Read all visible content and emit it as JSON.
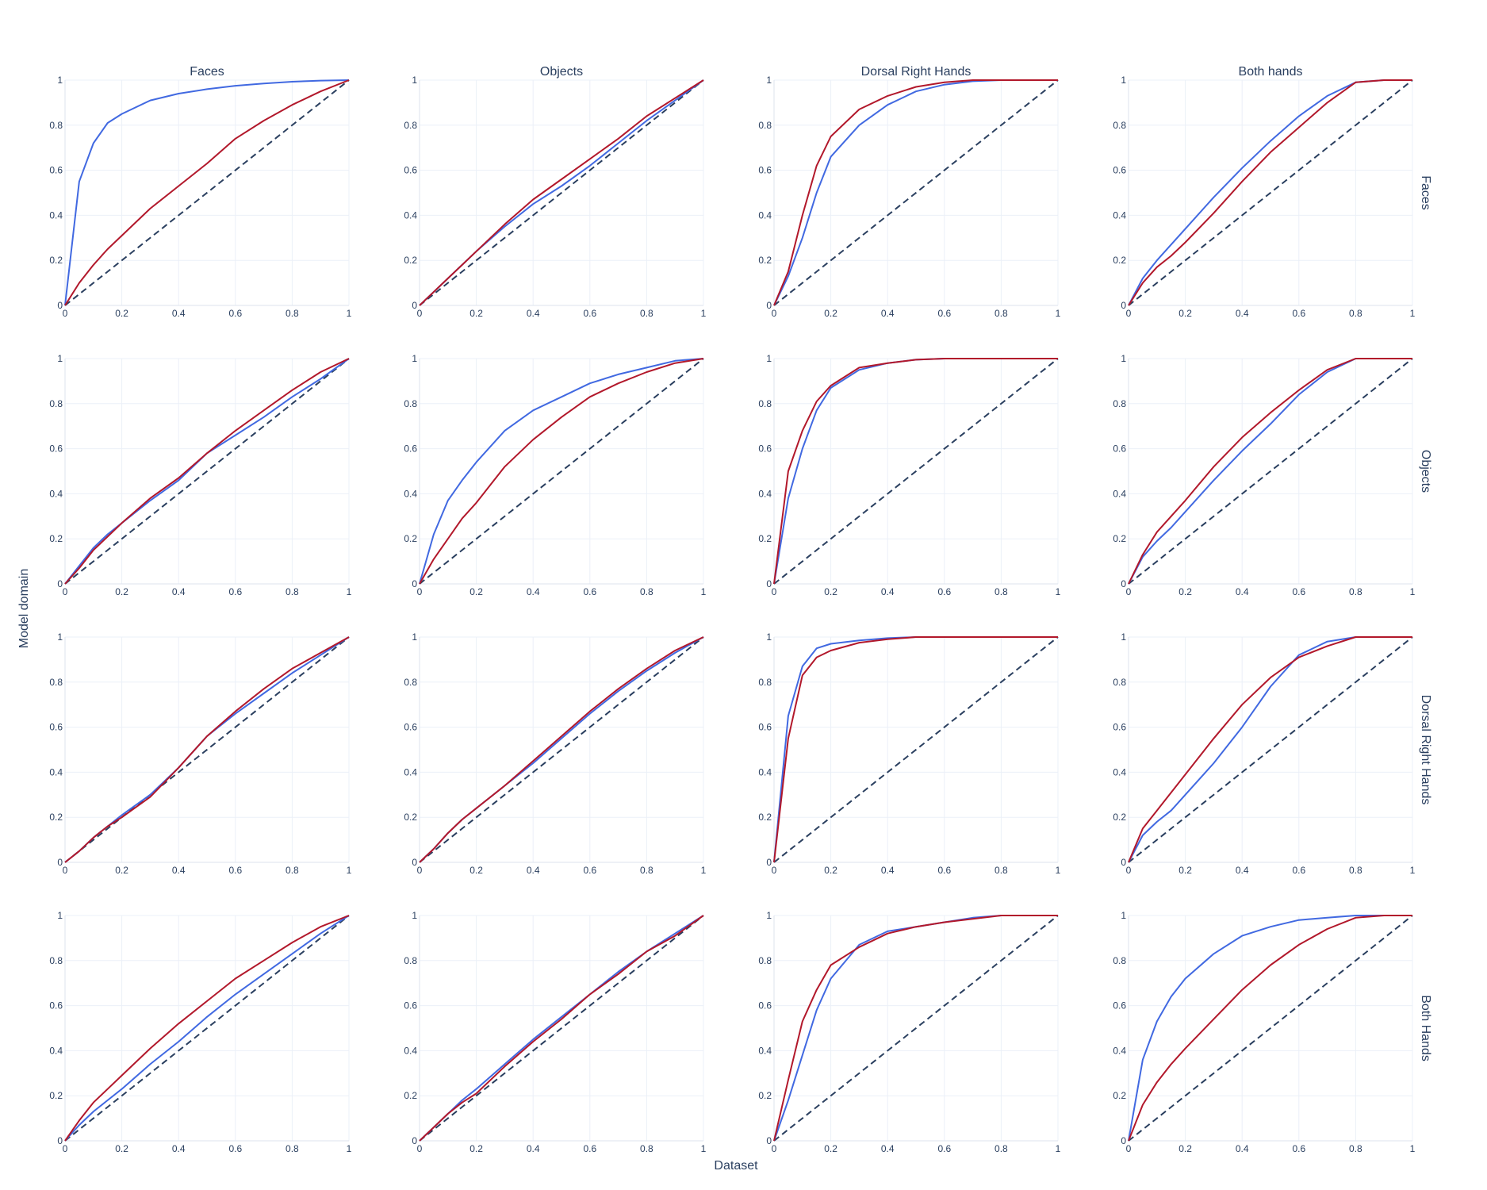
{
  "figure": {
    "column_titles": [
      "Faces",
      "Objects",
      "Dorsal Right Hands",
      "Both hands"
    ],
    "row_titles": [
      "Faces",
      "Objects",
      "Dorsal Right Hands",
      "Both Hands"
    ],
    "xlabel": "Dataset",
    "ylabel": "Model domain",
    "tick_labels": [
      "0",
      "0.2",
      "0.4",
      "0.6",
      "0.8",
      "1"
    ]
  },
  "colors": {
    "blue_series": "#4169e1",
    "red_series": "#b2182b",
    "diagonal": "#2a3f5f",
    "grid": "#ebf0f8",
    "text": "#2a3f5f"
  },
  "chart_data": {
    "type": "line",
    "layout": "4x4 grid of curves, rows = model domain, columns = dataset",
    "xlim": [
      0,
      1
    ],
    "ylim": [
      0,
      1
    ],
    "grid": true,
    "reference_line": {
      "x": [
        0,
        1
      ],
      "y": [
        0,
        1
      ],
      "style": "dashed"
    },
    "x": [
      0,
      0.05,
      0.1,
      0.15,
      0.2,
      0.3,
      0.4,
      0.5,
      0.6,
      0.7,
      0.8,
      0.9,
      1
    ],
    "panels": [
      {
        "row": "Faces",
        "col": "Faces",
        "series": [
          {
            "color": "blue",
            "values": [
              0,
              0.55,
              0.72,
              0.81,
              0.85,
              0.91,
              0.94,
              0.96,
              0.975,
              0.985,
              0.993,
              0.998,
              1
            ]
          },
          {
            "color": "red",
            "values": [
              0,
              0.1,
              0.18,
              0.25,
              0.31,
              0.43,
              0.53,
              0.63,
              0.74,
              0.82,
              0.89,
              0.95,
              1
            ]
          }
        ]
      },
      {
        "row": "Faces",
        "col": "Objects",
        "series": [
          {
            "color": "blue",
            "values": [
              0,
              0.06,
              0.12,
              0.18,
              0.24,
              0.35,
              0.45,
              0.53,
              0.62,
              0.72,
              0.82,
              0.91,
              1
            ]
          },
          {
            "color": "red",
            "values": [
              0,
              0.06,
              0.12,
              0.18,
              0.24,
              0.36,
              0.47,
              0.56,
              0.65,
              0.74,
              0.84,
              0.92,
              1
            ]
          }
        ]
      },
      {
        "row": "Faces",
        "col": "Dorsal Right Hands",
        "series": [
          {
            "color": "blue",
            "values": [
              0,
              0.13,
              0.3,
              0.5,
              0.66,
              0.8,
              0.89,
              0.95,
              0.98,
              0.995,
              1,
              1,
              1
            ]
          },
          {
            "color": "red",
            "values": [
              0,
              0.15,
              0.4,
              0.62,
              0.75,
              0.87,
              0.93,
              0.97,
              0.99,
              1,
              1,
              1,
              1
            ]
          }
        ]
      },
      {
        "row": "Faces",
        "col": "Both hands",
        "series": [
          {
            "color": "blue",
            "values": [
              0,
              0.12,
              0.2,
              0.27,
              0.34,
              0.48,
              0.61,
              0.73,
              0.84,
              0.93,
              0.99,
              1,
              1
            ]
          },
          {
            "color": "red",
            "values": [
              0,
              0.1,
              0.17,
              0.22,
              0.28,
              0.41,
              0.55,
              0.68,
              0.79,
              0.9,
              0.99,
              1,
              1
            ]
          }
        ]
      },
      {
        "row": "Objects",
        "col": "Faces",
        "series": [
          {
            "color": "blue",
            "values": [
              0,
              0.08,
              0.16,
              0.22,
              0.27,
              0.37,
              0.46,
              0.58,
              0.66,
              0.74,
              0.83,
              0.91,
              1
            ]
          },
          {
            "color": "red",
            "values": [
              0,
              0.07,
              0.15,
              0.21,
              0.27,
              0.38,
              0.47,
              0.58,
              0.68,
              0.77,
              0.86,
              0.94,
              1
            ]
          }
        ]
      },
      {
        "row": "Objects",
        "col": "Objects",
        "series": [
          {
            "color": "blue",
            "values": [
              0,
              0.22,
              0.37,
              0.46,
              0.54,
              0.68,
              0.77,
              0.83,
              0.89,
              0.93,
              0.96,
              0.99,
              1
            ]
          },
          {
            "color": "red",
            "values": [
              0,
              0.11,
              0.2,
              0.29,
              0.36,
              0.52,
              0.64,
              0.74,
              0.83,
              0.89,
              0.94,
              0.98,
              1
            ]
          }
        ]
      },
      {
        "row": "Objects",
        "col": "Dorsal Right Hands",
        "series": [
          {
            "color": "blue",
            "values": [
              0,
              0.38,
              0.6,
              0.77,
              0.87,
              0.95,
              0.98,
              0.995,
              1,
              1,
              1,
              1,
              1
            ]
          },
          {
            "color": "red",
            "values": [
              0,
              0.5,
              0.68,
              0.81,
              0.88,
              0.96,
              0.98,
              0.995,
              1,
              1,
              1,
              1,
              1
            ]
          }
        ]
      },
      {
        "row": "Objects",
        "col": "Both hands",
        "series": [
          {
            "color": "blue",
            "values": [
              0,
              0.12,
              0.19,
              0.25,
              0.32,
              0.46,
              0.59,
              0.71,
              0.84,
              0.94,
              1,
              1,
              1
            ]
          },
          {
            "color": "red",
            "values": [
              0,
              0.13,
              0.23,
              0.3,
              0.37,
              0.52,
              0.65,
              0.76,
              0.86,
              0.95,
              1,
              1,
              1
            ]
          }
        ]
      },
      {
        "row": "Dorsal Right Hands",
        "col": "Faces",
        "series": [
          {
            "color": "blue",
            "values": [
              0,
              0.05,
              0.11,
              0.16,
              0.21,
              0.3,
              0.42,
              0.56,
              0.66,
              0.75,
              0.84,
              0.92,
              1
            ]
          },
          {
            "color": "red",
            "values": [
              0,
              0.05,
              0.11,
              0.16,
              0.2,
              0.29,
              0.42,
              0.56,
              0.67,
              0.77,
              0.86,
              0.93,
              1
            ]
          }
        ]
      },
      {
        "row": "Dorsal Right Hands",
        "col": "Objects",
        "series": [
          {
            "color": "blue",
            "values": [
              0,
              0.06,
              0.13,
              0.19,
              0.24,
              0.34,
              0.44,
              0.55,
              0.66,
              0.76,
              0.85,
              0.93,
              1
            ]
          },
          {
            "color": "red",
            "values": [
              0,
              0.06,
              0.13,
              0.19,
              0.24,
              0.34,
              0.45,
              0.56,
              0.67,
              0.77,
              0.86,
              0.94,
              1
            ]
          }
        ]
      },
      {
        "row": "Dorsal Right Hands",
        "col": "Dorsal Right Hands",
        "series": [
          {
            "color": "blue",
            "values": [
              0,
              0.65,
              0.87,
              0.95,
              0.97,
              0.985,
              0.995,
              1,
              1,
              1,
              1,
              1,
              1
            ]
          },
          {
            "color": "red",
            "values": [
              0,
              0.55,
              0.83,
              0.91,
              0.94,
              0.975,
              0.99,
              1,
              1,
              1,
              1,
              1,
              1
            ]
          }
        ]
      },
      {
        "row": "Dorsal Right Hands",
        "col": "Both hands",
        "series": [
          {
            "color": "blue",
            "values": [
              0,
              0.12,
              0.18,
              0.23,
              0.3,
              0.44,
              0.6,
              0.78,
              0.92,
              0.98,
              1,
              1,
              1
            ]
          },
          {
            "color": "red",
            "values": [
              0,
              0.15,
              0.23,
              0.31,
              0.39,
              0.55,
              0.7,
              0.82,
              0.91,
              0.96,
              1,
              1,
              1
            ]
          }
        ]
      },
      {
        "row": "Both Hands",
        "col": "Faces",
        "series": [
          {
            "color": "blue",
            "values": [
              0,
              0.07,
              0.13,
              0.18,
              0.23,
              0.34,
              0.44,
              0.55,
              0.65,
              0.74,
              0.83,
              0.92,
              1
            ]
          },
          {
            "color": "red",
            "values": [
              0,
              0.09,
              0.17,
              0.23,
              0.29,
              0.41,
              0.52,
              0.62,
              0.72,
              0.8,
              0.88,
              0.95,
              1
            ]
          }
        ]
      },
      {
        "row": "Both Hands",
        "col": "Objects",
        "series": [
          {
            "color": "blue",
            "values": [
              0,
              0.06,
              0.12,
              0.18,
              0.23,
              0.34,
              0.45,
              0.55,
              0.65,
              0.75,
              0.84,
              0.92,
              1
            ]
          },
          {
            "color": "red",
            "values": [
              0,
              0.06,
              0.12,
              0.17,
              0.21,
              0.33,
              0.44,
              0.54,
              0.65,
              0.74,
              0.84,
              0.91,
              1
            ]
          }
        ]
      },
      {
        "row": "Both Hands",
        "col": "Dorsal Right Hands",
        "series": [
          {
            "color": "blue",
            "values": [
              0,
              0.18,
              0.38,
              0.58,
              0.72,
              0.87,
              0.93,
              0.95,
              0.97,
              0.99,
              1,
              1,
              1
            ]
          },
          {
            "color": "red",
            "values": [
              0,
              0.27,
              0.53,
              0.67,
              0.78,
              0.86,
              0.92,
              0.95,
              0.97,
              0.985,
              1,
              1,
              1
            ]
          }
        ]
      },
      {
        "row": "Both Hands",
        "col": "Both hands",
        "series": [
          {
            "color": "blue",
            "values": [
              0,
              0.36,
              0.53,
              0.64,
              0.72,
              0.83,
              0.91,
              0.95,
              0.98,
              0.99,
              1,
              1,
              1
            ]
          },
          {
            "color": "red",
            "values": [
              0,
              0.16,
              0.26,
              0.34,
              0.41,
              0.54,
              0.67,
              0.78,
              0.87,
              0.94,
              0.99,
              1,
              1
            ]
          }
        ]
      }
    ]
  }
}
